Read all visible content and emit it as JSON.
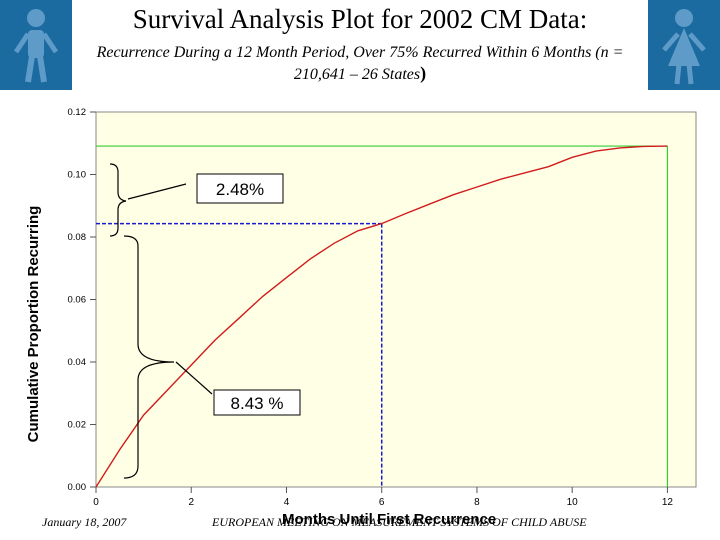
{
  "header": {
    "title": "Survival Analysis Plot for 2002 CM Data:",
    "subtitle_main": "Recurrence During a 12 Month Period, Over 75% Recurred Within 6 Months (n = 210,641 – 26 States",
    "subtitle_paren": ")"
  },
  "footer": {
    "date": "January 18, 2007",
    "conference": "EUROPEAN MEETING ON MEASUREMENT SYSTEMS OF CHILD ABUSE"
  },
  "colors": {
    "plot_bg": "#ffffe6",
    "curve": "#d11c1c",
    "guide_green": "#33cc33",
    "guide_blue": "#1a1acc",
    "logo_bg": "#1b6aa0"
  },
  "chart_data": {
    "type": "line",
    "xlabel": "Months Until First Recurrence",
    "ylabel": "Cumulative Proportion Recurring",
    "xlim": [
      0,
      12.6
    ],
    "ylim": [
      0,
      0.12
    ],
    "x_ticks": [
      "0",
      "2",
      "4",
      "6",
      "8",
      "10",
      "12"
    ],
    "y_ticks": [
      "0.00",
      "0.02",
      "0.04",
      "0.06",
      "0.08",
      "0.10",
      "0.12"
    ],
    "grid": false,
    "series": [
      {
        "x": [
          0,
          0.5,
          1,
          1.5,
          2,
          2.5,
          3,
          3.5,
          4,
          4.5,
          5,
          5.5,
          6,
          6.5,
          7,
          7.5,
          8,
          8.5,
          9,
          9.5,
          10,
          10.5,
          11,
          11.5,
          12
        ],
        "y": [
          0,
          0.012,
          0.023,
          0.031,
          0.039,
          0.047,
          0.054,
          0.061,
          0.067,
          0.073,
          0.078,
          0.082,
          0.0843,
          0.0875,
          0.0905,
          0.0935,
          0.096,
          0.0985,
          0.1005,
          0.1025,
          0.1055,
          0.1075,
          0.1085,
          0.109,
          0.1091
        ]
      }
    ],
    "reference_lines": {
      "final_level": 0.1091,
      "six_month_level": 0.0843,
      "six_month_x": 6,
      "end_x": 12
    },
    "annotations": [
      "2.48%",
      "8.43 %"
    ]
  }
}
